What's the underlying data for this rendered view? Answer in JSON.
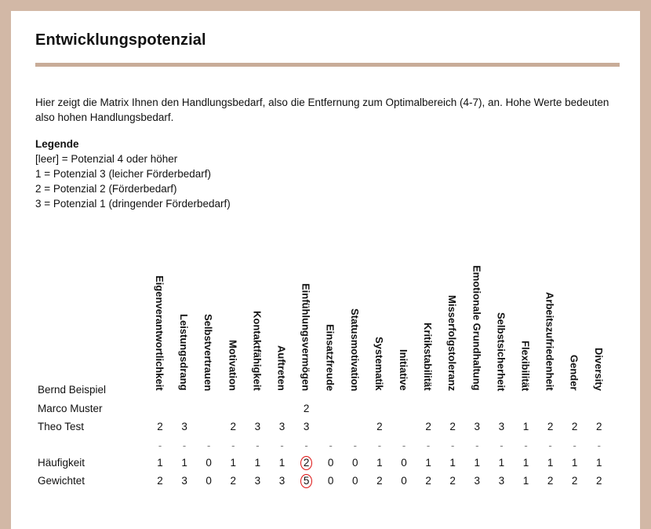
{
  "title": "Entwicklungspotenzial",
  "intro": "Hier zeigt die Matrix Ihnen den Handlungsbedarf, also die Entfernung zum Optimalbereich (4-7), an. Hohe Werte bedeuten also hohen Handlungsbedarf.",
  "legend": {
    "heading": "Legende",
    "lines": [
      "[leer] = Potenzial 4 oder höher",
      "1 = Potenzial 3 (leicher Förderbedarf)",
      "2 = Potenzial 2 (Förderbedarf)",
      "3 = Potenzial 1 (dringender Förderbedarf)"
    ]
  },
  "columns": [
    "Eigenverantwortlichkeit",
    "Leistungsdrang",
    "Selbstvertrauen",
    "Motivation",
    "Kontaktfähigkeit",
    "Auftreten",
    "Einfühlungsvermögen",
    "Einsatzfreude",
    "Statusmotivation",
    "Systematik",
    "Initiative",
    "Kritikstabilität",
    "Misserfolgstoleranz",
    "Emotionale Grundhaltung",
    "Selbstsicherheit",
    "Flexibilität",
    "Arbeitszufriedenheit",
    "Gender",
    "Diversity"
  ],
  "rows": [
    {
      "label": "Bernd Beispiel",
      "values": [
        "",
        "",
        "",
        "",
        "",
        "",
        "",
        "",
        "",
        "",
        "",
        "",
        "",
        "",
        "",
        "",
        "",
        "",
        ""
      ]
    },
    {
      "label": "Marco Muster",
      "values": [
        "",
        "",
        "",
        "",
        "",
        "",
        "2",
        "",
        "",
        "",
        "",
        "",
        "",
        "",
        "",
        "",
        "",
        "",
        ""
      ]
    },
    {
      "label": "Theo Test",
      "values": [
        "2",
        "3",
        "",
        "2",
        "3",
        "3",
        "3",
        "",
        "",
        "2",
        "",
        "2",
        "2",
        "3",
        "3",
        "1",
        "2",
        "2",
        "2"
      ]
    }
  ],
  "separator": "-",
  "summary": [
    {
      "label": "Häufigkeit",
      "values": [
        "1",
        "1",
        "0",
        "1",
        "1",
        "1",
        "2",
        "0",
        "0",
        "1",
        "0",
        "1",
        "1",
        "1",
        "1",
        "1",
        "1",
        "1",
        "1"
      ]
    },
    {
      "label": "Gewichtet",
      "values": [
        "2",
        "3",
        "0",
        "2",
        "3",
        "3",
        "5",
        "0",
        "0",
        "2",
        "0",
        "2",
        "2",
        "3",
        "3",
        "1",
        "2",
        "2",
        "2"
      ]
    }
  ],
  "highlight_column": "Einfühlungsvermögen",
  "highlight_color": "#dd1111"
}
